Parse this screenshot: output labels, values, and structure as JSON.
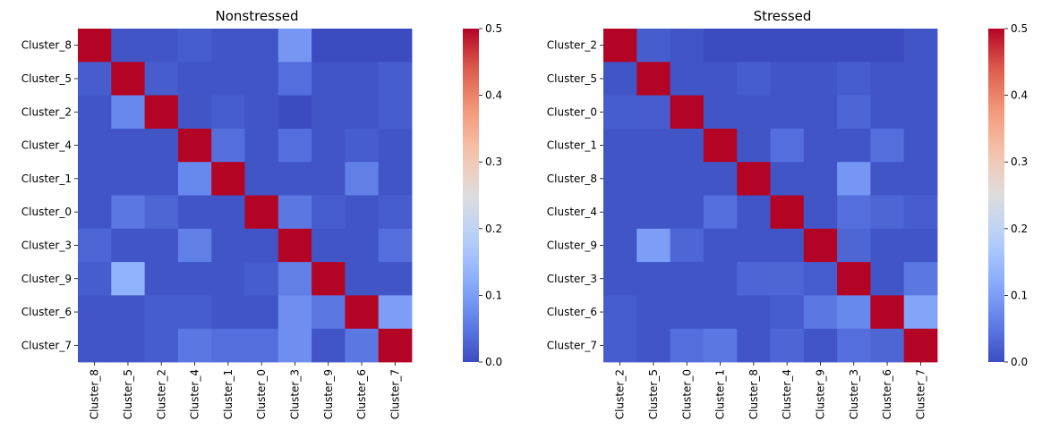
{
  "chart_data": [
    {
      "type": "heatmap",
      "title": "Nonstressed",
      "rows": [
        "Cluster_8",
        "Cluster_5",
        "Cluster_2",
        "Cluster_4",
        "Cluster_1",
        "Cluster_0",
        "Cluster_3",
        "Cluster_9",
        "Cluster_6",
        "Cluster_7"
      ],
      "cols": [
        "Cluster_8",
        "Cluster_5",
        "Cluster_2",
        "Cluster_4",
        "Cluster_1",
        "Cluster_0",
        "Cluster_3",
        "Cluster_9",
        "Cluster_6",
        "Cluster_7"
      ],
      "values": [
        [
          0.5,
          0.01,
          0.01,
          0.02,
          0.01,
          0.01,
          0.09,
          0.0,
          0.0,
          0.0
        ],
        [
          0.02,
          0.5,
          0.02,
          0.01,
          0.01,
          0.01,
          0.04,
          0.01,
          0.01,
          0.02
        ],
        [
          0.01,
          0.07,
          0.5,
          0.01,
          0.02,
          0.01,
          0.0,
          0.01,
          0.01,
          0.02
        ],
        [
          0.01,
          0.01,
          0.01,
          0.5,
          0.04,
          0.01,
          0.04,
          0.01,
          0.02,
          0.01
        ],
        [
          0.01,
          0.01,
          0.01,
          0.07,
          0.5,
          0.01,
          0.01,
          0.01,
          0.06,
          0.01
        ],
        [
          0.01,
          0.05,
          0.03,
          0.01,
          0.01,
          0.5,
          0.05,
          0.02,
          0.01,
          0.02
        ],
        [
          0.03,
          0.01,
          0.01,
          0.06,
          0.01,
          0.01,
          0.5,
          0.01,
          0.01,
          0.04
        ],
        [
          0.02,
          0.13,
          0.01,
          0.01,
          0.01,
          0.02,
          0.06,
          0.5,
          0.01,
          0.01
        ],
        [
          0.01,
          0.01,
          0.02,
          0.02,
          0.01,
          0.01,
          0.08,
          0.05,
          0.5,
          0.1
        ],
        [
          0.01,
          0.01,
          0.02,
          0.05,
          0.04,
          0.04,
          0.08,
          0.01,
          0.05,
          0.5
        ]
      ],
      "colorbar": {
        "colormap": "coolwarm",
        "vmin": 0.0,
        "vmax": 0.5,
        "ticks": [
          "0.0",
          "0.1",
          "0.2",
          "0.3",
          "0.4",
          "0.5"
        ]
      }
    },
    {
      "type": "heatmap",
      "title": "Stressed",
      "rows": [
        "Cluster_2",
        "Cluster_5",
        "Cluster_0",
        "Cluster_1",
        "Cluster_8",
        "Cluster_4",
        "Cluster_9",
        "Cluster_3",
        "Cluster_6",
        "Cluster_7"
      ],
      "cols": [
        "Cluster_2",
        "Cluster_5",
        "Cluster_0",
        "Cluster_1",
        "Cluster_8",
        "Cluster_4",
        "Cluster_9",
        "Cluster_3",
        "Cluster_6",
        "Cluster_7"
      ],
      "values": [
        [
          0.5,
          0.02,
          0.01,
          0.0,
          0.0,
          0.0,
          0.0,
          0.0,
          0.0,
          0.01
        ],
        [
          0.01,
          0.5,
          0.01,
          0.01,
          0.02,
          0.01,
          0.01,
          0.02,
          0.01,
          0.01
        ],
        [
          0.02,
          0.02,
          0.5,
          0.01,
          0.01,
          0.01,
          0.01,
          0.03,
          0.01,
          0.01
        ],
        [
          0.01,
          0.01,
          0.01,
          0.5,
          0.01,
          0.04,
          0.01,
          0.01,
          0.04,
          0.01
        ],
        [
          0.01,
          0.01,
          0.01,
          0.01,
          0.5,
          0.01,
          0.01,
          0.09,
          0.01,
          0.01
        ],
        [
          0.01,
          0.01,
          0.01,
          0.04,
          0.01,
          0.5,
          0.01,
          0.04,
          0.03,
          0.02
        ],
        [
          0.01,
          0.1,
          0.03,
          0.01,
          0.01,
          0.01,
          0.5,
          0.03,
          0.01,
          0.01
        ],
        [
          0.01,
          0.01,
          0.01,
          0.01,
          0.03,
          0.03,
          0.02,
          0.5,
          0.01,
          0.05
        ],
        [
          0.02,
          0.01,
          0.01,
          0.01,
          0.01,
          0.02,
          0.05,
          0.07,
          0.5,
          0.11
        ],
        [
          0.02,
          0.01,
          0.04,
          0.05,
          0.01,
          0.03,
          0.01,
          0.04,
          0.03,
          0.5
        ]
      ],
      "colorbar": {
        "colormap": "coolwarm",
        "vmin": 0.0,
        "vmax": 0.5,
        "ticks": [
          "0.0",
          "0.1",
          "0.2",
          "0.3",
          "0.4",
          "0.5"
        ]
      }
    }
  ]
}
